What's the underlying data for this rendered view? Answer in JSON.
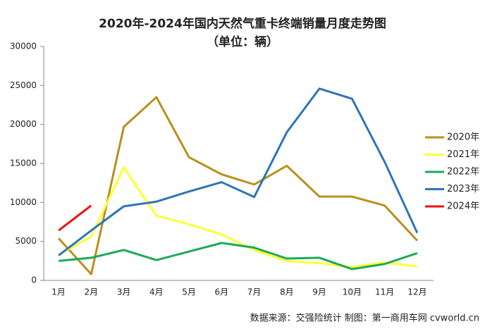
{
  "chart_data": {
    "type": "line",
    "title": "2020年-2024年国内天然气重卡终端销量月度走势图",
    "subtitle": "（单位：辆）",
    "source": "数据来源：交强险统计   制图：第一商用车网 cvworld.cn",
    "categories": [
      "1月",
      "2月",
      "3月",
      "4月",
      "5月",
      "6月",
      "7月",
      "8月",
      "9月",
      "10月",
      "11月",
      "12月"
    ],
    "series": [
      {
        "name": "2020年",
        "color": "#b8901c",
        "values": [
          5400,
          800,
          19700,
          23500,
          15800,
          13600,
          12300,
          14700,
          10750,
          10750,
          9600,
          5100
        ]
      },
      {
        "name": "2021年",
        "color": "#ffff33",
        "values": [
          3300,
          5600,
          14500,
          8300,
          7200,
          5900,
          3900,
          2500,
          2200,
          1700,
          2300,
          1800
        ]
      },
      {
        "name": "2022年",
        "color": "#1aaa55",
        "values": [
          2500,
          2900,
          3900,
          2600,
          3700,
          4800,
          4200,
          2800,
          2900,
          1450,
          2100,
          3500
        ]
      },
      {
        "name": "2023年",
        "color": "#2e75b6",
        "values": [
          3200,
          6400,
          9500,
          10100,
          11400,
          12600,
          10700,
          19000,
          24600,
          23300,
          15200,
          6100
        ]
      },
      {
        "name": "2024年",
        "color": "#ee1111",
        "values": [
          6400,
          9600,
          null,
          null,
          null,
          null,
          null,
          null,
          null,
          null,
          null,
          null
        ]
      }
    ],
    "ylim": [
      0,
      30000
    ],
    "yticks": [
      0,
      5000,
      10000,
      15000,
      20000,
      25000,
      30000
    ],
    "grid": false,
    "legend": "right"
  }
}
